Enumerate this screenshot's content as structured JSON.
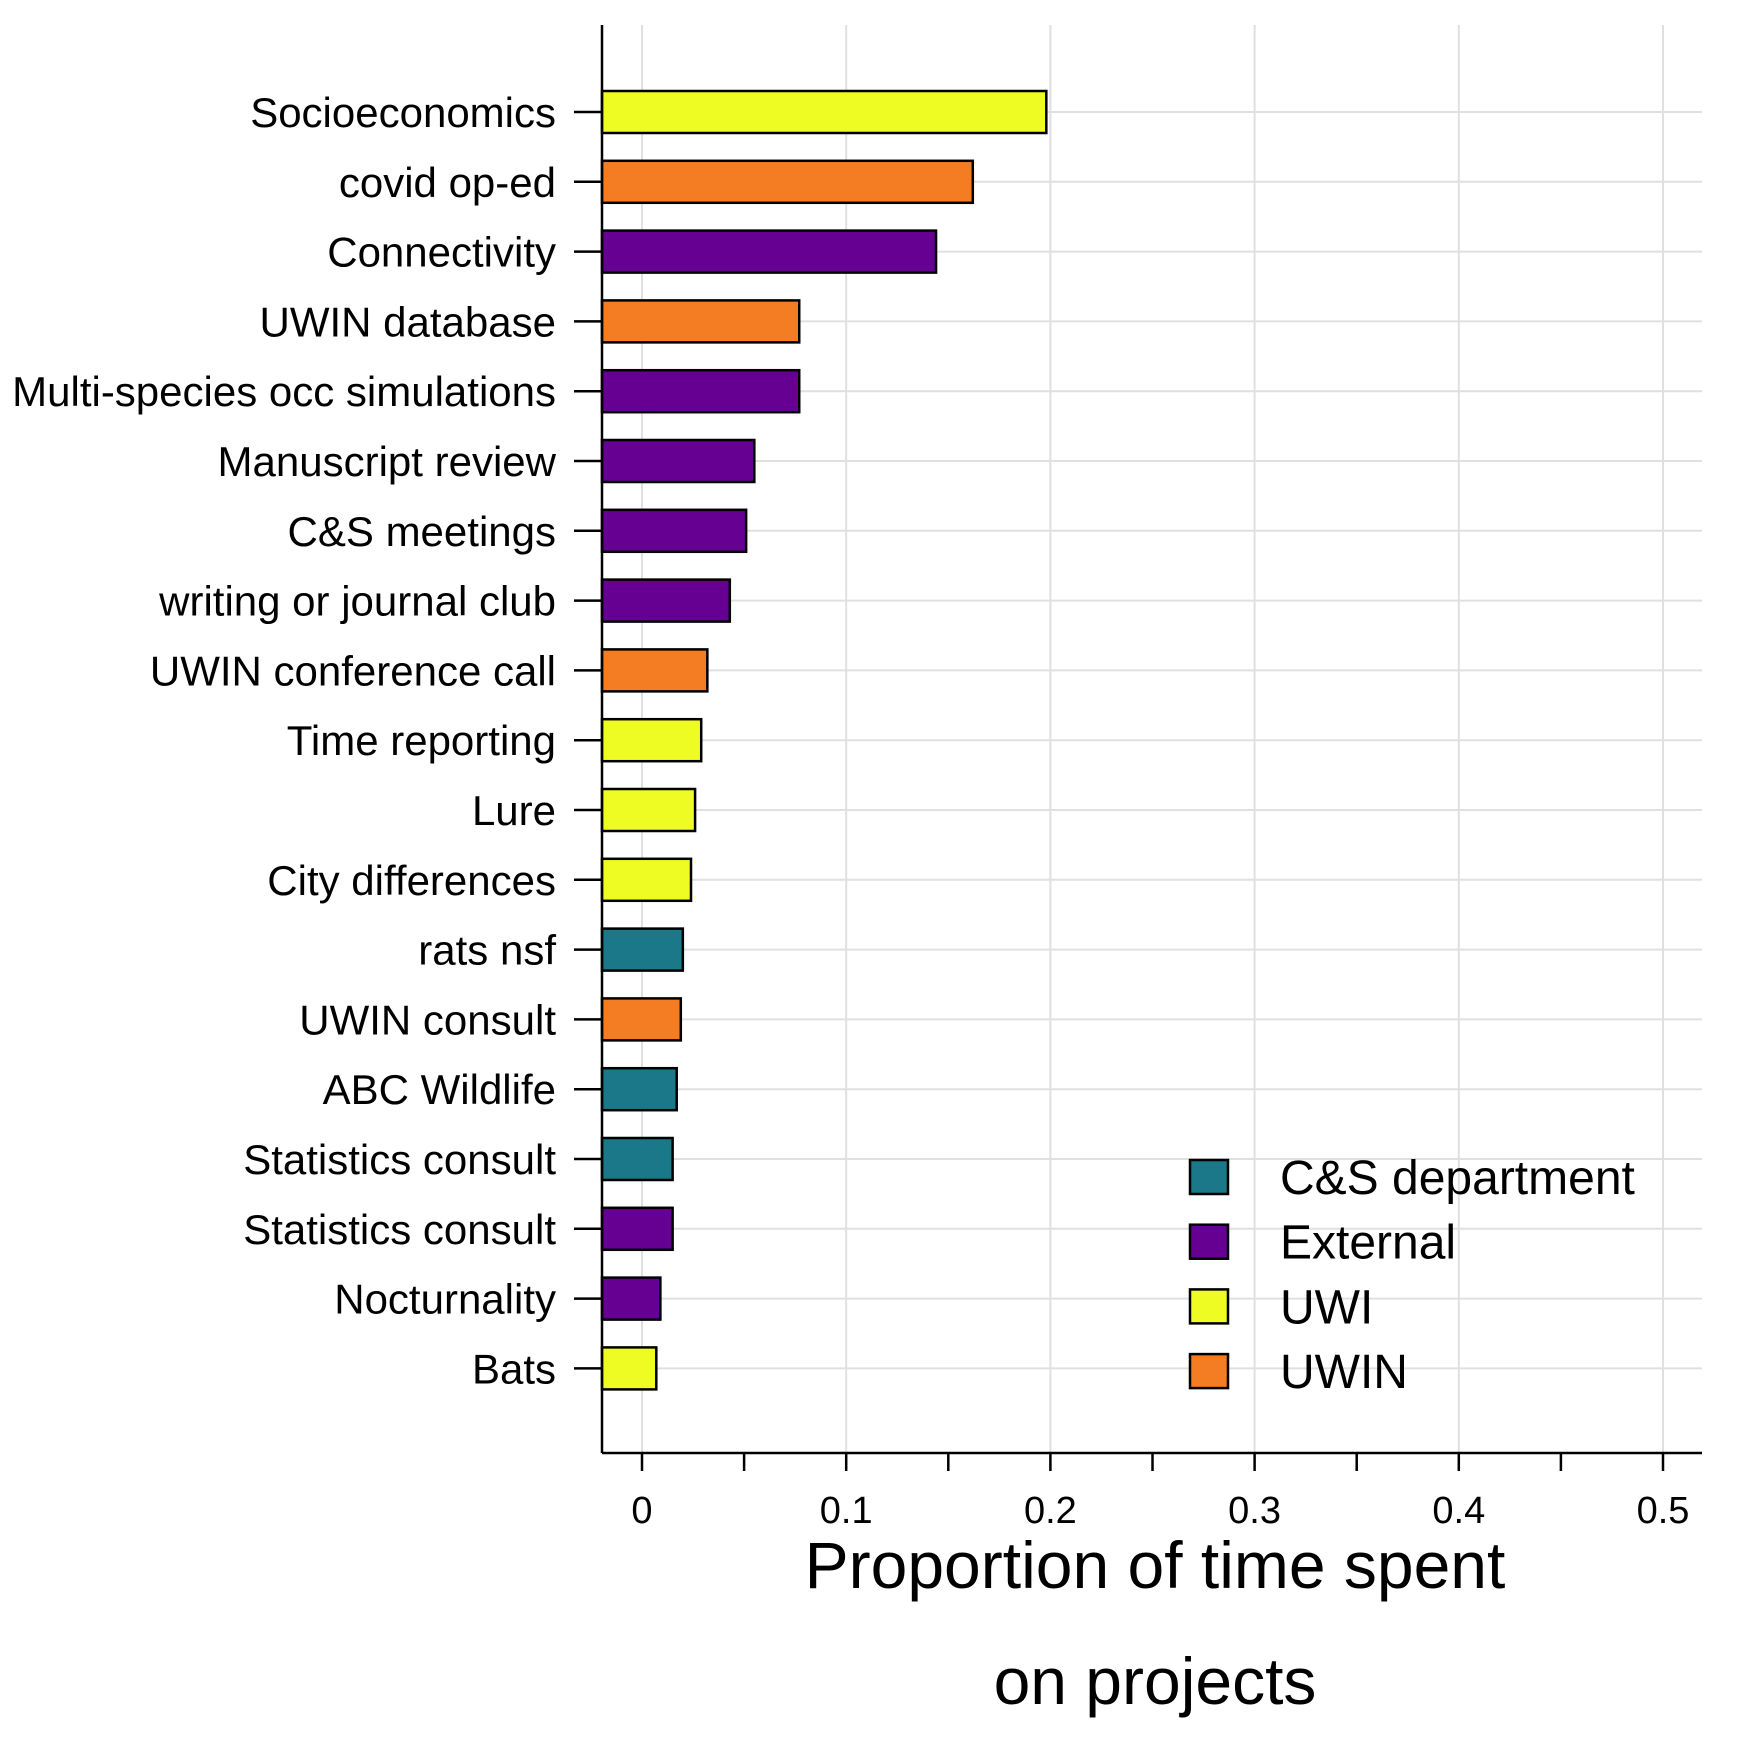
{
  "chart_data": {
    "type": "bar",
    "orientation": "horizontal",
    "categories": [
      "Socioeconomics",
      "covid op-ed",
      "Connectivity",
      "UWIN database",
      "Multi-species occ simulations",
      "Manuscript review",
      "C&S meetings",
      "writing or journal club",
      "UWIN conference call",
      "Time reporting",
      "Lure",
      "City differences",
      "rats nsf",
      "UWIN consult",
      "ABC Wildlife",
      "Statistics consult",
      "Statistics consult",
      "Nocturnality",
      "Bats"
    ],
    "values": [
      0.198,
      0.162,
      0.144,
      0.077,
      0.077,
      0.055,
      0.051,
      0.043,
      0.032,
      0.029,
      0.026,
      0.024,
      0.02,
      0.019,
      0.017,
      0.015,
      0.015,
      0.009,
      0.007
    ],
    "groups": [
      "UWI",
      "UWIN",
      "External",
      "UWIN",
      "External",
      "External",
      "External",
      "External",
      "UWIN",
      "UWI",
      "UWI",
      "UWI",
      "C&S department",
      "UWIN",
      "C&S department",
      "C&S department",
      "External",
      "External",
      "UWI"
    ],
    "legend": [
      {
        "name": "C&S department",
        "color": "#1b7888"
      },
      {
        "name": "External",
        "color": "#660092"
      },
      {
        "name": "UWI",
        "color": "#eefc24"
      },
      {
        "name": "UWIN",
        "color": "#f47d23"
      }
    ],
    "legend_position": "bottom-right",
    "xlabel_line1": "Proportion of time spent",
    "xlabel_line2": "on projects",
    "ylabel": "",
    "xlim": [
      -0.02,
      0.52
    ],
    "xticks": [
      0,
      0.1,
      0.2,
      0.3,
      0.4,
      0.5
    ],
    "xtick_labels": [
      "0",
      "0.1",
      "0.2",
      "0.3",
      "0.4",
      "0.5"
    ],
    "grid": true
  }
}
